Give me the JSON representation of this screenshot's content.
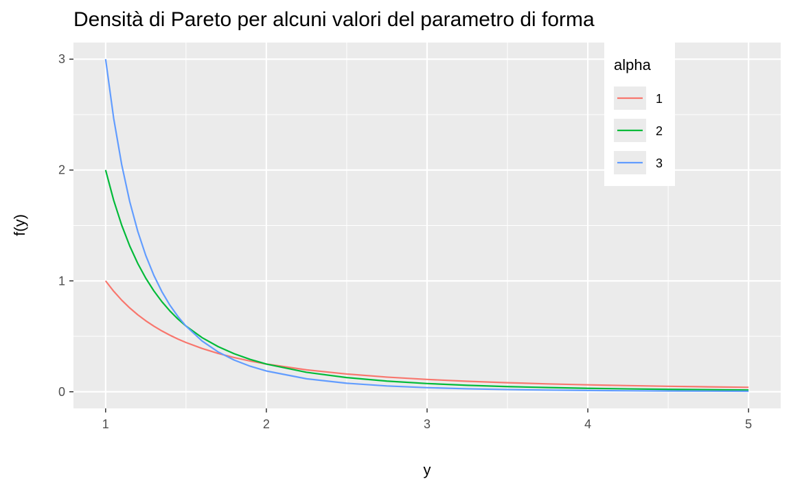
{
  "chart_data": {
    "type": "line",
    "title": "Densità di Pareto per alcuni valori del parametro di forma",
    "xlabel": "y",
    "ylabel": "f(y)",
    "xlim": [
      0.8,
      5.2
    ],
    "ylim": [
      -0.15,
      3.15
    ],
    "x_ticks": [
      1,
      2,
      3,
      4,
      5
    ],
    "x_tick_labels": [
      "1",
      "2",
      "3",
      "4",
      "5"
    ],
    "y_ticks": [
      0,
      1,
      2,
      3
    ],
    "y_tick_labels": [
      "0",
      "1",
      "2",
      "3"
    ],
    "x_minor_ticks": [
      1.5,
      2.5,
      3.5,
      4.5
    ],
    "y_minor_ticks": [
      0.5,
      1.5,
      2.5
    ],
    "grid": true,
    "legend": {
      "title": "alpha",
      "position": "top-right",
      "entries": [
        "1",
        "2",
        "3"
      ]
    },
    "x": [
      1.0,
      1.05,
      1.1,
      1.15,
      1.2,
      1.25,
      1.3,
      1.35,
      1.4,
      1.45,
      1.5,
      1.6,
      1.7,
      1.8,
      1.9,
      2.0,
      2.25,
      2.5,
      2.75,
      3.0,
      3.25,
      3.5,
      3.75,
      4.0,
      4.25,
      4.5,
      4.75,
      5.0
    ],
    "series": [
      {
        "name": "1",
        "color": "#F8766D",
        "values": [
          1.0,
          0.907,
          0.8264,
          0.7561,
          0.6944,
          0.64,
          0.5917,
          0.5487,
          0.5102,
          0.4756,
          0.4444,
          0.3906,
          0.346,
          0.3086,
          0.277,
          0.25,
          0.1975,
          0.16,
          0.1322,
          0.1111,
          0.0947,
          0.0816,
          0.0711,
          0.0625,
          0.0554,
          0.0494,
          0.0443,
          0.04
        ]
      },
      {
        "name": "2",
        "color": "#00BA38",
        "values": [
          2.0,
          1.7277,
          1.5026,
          1.315,
          1.1574,
          1.024,
          0.9103,
          0.8129,
          0.7289,
          0.656,
          0.5926,
          0.4883,
          0.4071,
          0.3429,
          0.2916,
          0.25,
          0.1756,
          0.128,
          0.0962,
          0.0741,
          0.0583,
          0.0466,
          0.0379,
          0.03125,
          0.0261,
          0.0219,
          0.0187,
          0.016
        ]
      },
      {
        "name": "3",
        "color": "#619CFF",
        "values": [
          3.0,
          2.4681,
          2.049,
          1.7152,
          1.4468,
          1.2288,
          1.0504,
          0.9032,
          0.7809,
          0.6786,
          0.5926,
          0.4578,
          0.3592,
          0.2858,
          0.2302,
          0.1875,
          0.117,
          0.0768,
          0.0525,
          0.037,
          0.0269,
          0.02,
          0.0152,
          0.0117,
          0.0092,
          0.0073,
          0.0059,
          0.0048
        ]
      }
    ]
  }
}
